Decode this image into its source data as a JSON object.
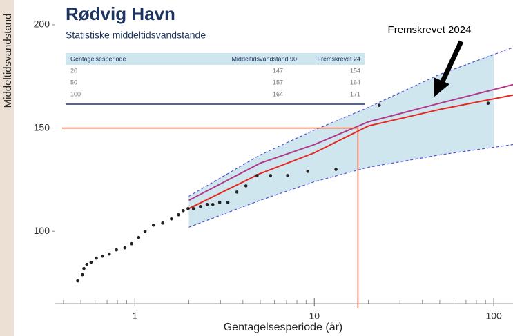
{
  "chart_data": {
    "type": "scatter",
    "x_label": "Gentagelsesperiode (år)",
    "y_label": "Middeltidsvandstand",
    "log_x": true,
    "xlim": [
      0.36,
      128
    ],
    "ylim": [
      65,
      212
    ],
    "xticks": [
      1,
      10,
      100
    ],
    "xminorticks": [
      0.4,
      0.5,
      0.6,
      0.7,
      0.8,
      0.9,
      2,
      3,
      4,
      5,
      6,
      7,
      8,
      9,
      20,
      30,
      40,
      50,
      60,
      70,
      80,
      90
    ],
    "yticks": [
      100,
      150,
      200
    ],
    "points": {
      "color": "#222222",
      "x": [
        0.48,
        0.51,
        0.52,
        0.54,
        0.57,
        0.61,
        0.66,
        0.72,
        0.79,
        0.88,
        0.96,
        1.05,
        1.14,
        1.27,
        1.43,
        1.6,
        1.75,
        1.86,
        1.98,
        2.12,
        2.32,
        2.53,
        2.72,
        2.97,
        3.3,
        3.7,
        4.16,
        4.8,
        5.7,
        7.1,
        9.2,
        13.2,
        23,
        93
      ],
      "y": [
        76,
        79,
        82,
        84,
        85,
        87,
        88,
        89,
        91,
        92,
        94,
        97,
        100,
        103,
        104,
        106,
        108,
        110,
        111,
        111,
        112,
        113,
        113,
        114,
        114,
        119,
        122,
        127,
        127,
        127,
        129,
        130,
        161,
        162
      ]
    },
    "band": {
      "color": "#cfe6ef",
      "x": [
        2,
        5,
        10,
        20,
        50,
        100
      ],
      "upper": [
        117,
        137,
        149,
        160,
        176,
        186
      ],
      "lower": [
        102,
        115,
        124,
        131,
        137,
        141
      ]
    },
    "lines": [
      {
        "color": "#5050d8",
        "dash": true,
        "x": [
          2,
          5,
          10,
          20,
          50,
          128
        ],
        "values": [
          117,
          137,
          149,
          160,
          176,
          189
        ]
      },
      {
        "color": "#5050d8",
        "dash": true,
        "x": [
          2,
          5,
          10,
          20,
          50,
          128
        ],
        "values": [
          102,
          115,
          124,
          131,
          137,
          142
        ]
      },
      {
        "color": "#b03a8a",
        "dash": false,
        "x": [
          2,
          5,
          10,
          20,
          50,
          128
        ],
        "values": [
          115,
          133,
          142,
          153,
          162,
          171
        ]
      },
      {
        "color": "#e8261f",
        "dash": false,
        "x": [
          2,
          5,
          10,
          20,
          50,
          128
        ],
        "values": [
          111,
          128,
          138,
          151,
          159,
          166
        ]
      }
    ],
    "reference": {
      "color": "#e8491f",
      "x": 17.5,
      "y": 150
    },
    "annotation": "Fremskrevet 2024"
  },
  "inset": {
    "title": "Rødvig Havn",
    "subtitle": "Statistiske middeltidsvandstande",
    "header": [
      "Gentagelsesperiode",
      "Middeltidsvandstand  90",
      "Fremskrevet 24"
    ],
    "rows": [
      [
        "20",
        "147",
        "154"
      ],
      [
        "50",
        "157",
        "164"
      ],
      [
        "100",
        "164",
        "171"
      ]
    ]
  }
}
